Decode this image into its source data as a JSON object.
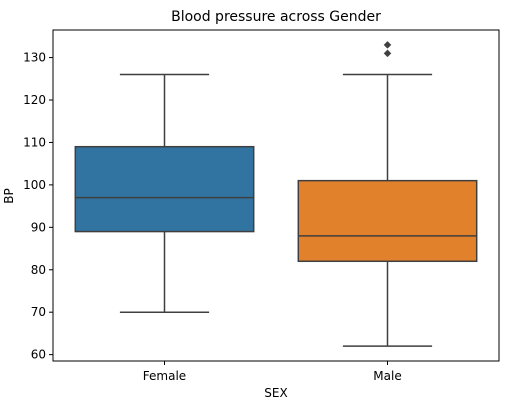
{
  "chart_data": {
    "type": "box",
    "title": "Blood pressure across Gender",
    "xlabel": "SEX",
    "ylabel": "BP",
    "ylim": [
      58.5,
      136.5
    ],
    "yticks": [
      60,
      70,
      80,
      90,
      100,
      110,
      120,
      130
    ],
    "grid": false,
    "categories": [
      "Female",
      "Male"
    ],
    "boxes": [
      {
        "category": "Female",
        "whisker_low": 70,
        "q1": 89,
        "median": 97,
        "q3": 109,
        "whisker_high": 126,
        "outliers": [],
        "color": "#3274a1"
      },
      {
        "category": "Male",
        "whisker_low": 62,
        "q1": 82,
        "median": 88,
        "q3": 101,
        "whisker_high": 126,
        "outliers": [
          131,
          133
        ],
        "color": "#e1812c"
      }
    ],
    "line_color": "#3f3f3f"
  }
}
